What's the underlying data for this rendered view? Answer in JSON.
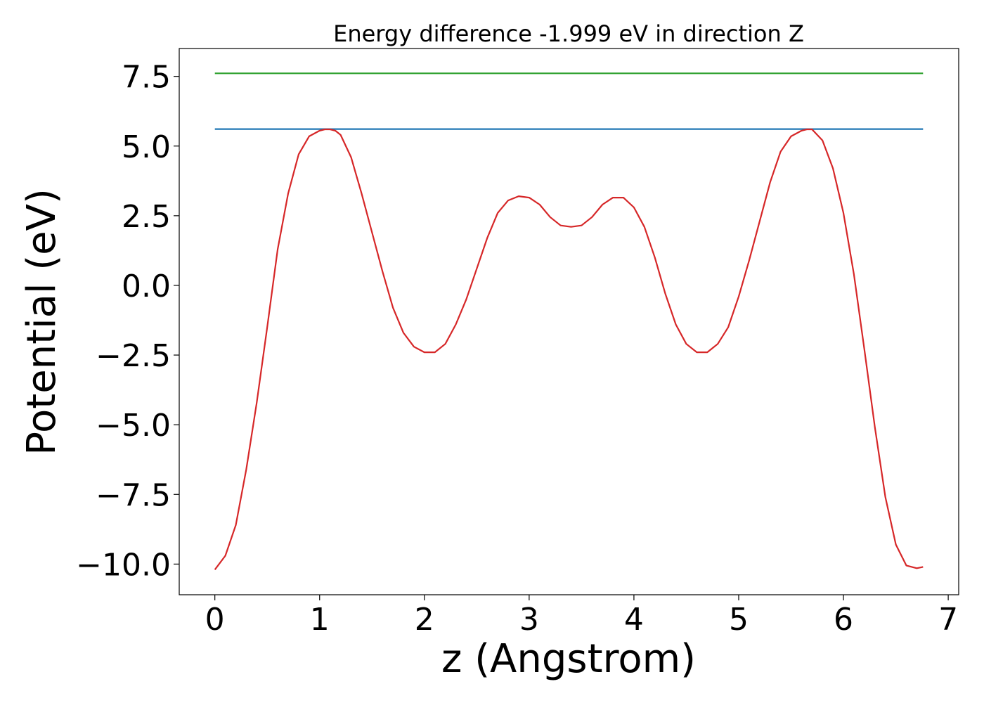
{
  "chart_data": {
    "type": "line",
    "title": "Energy difference -1.999 eV in direction Z",
    "xlabel": "z (Angstrom)",
    "ylabel": "Potential (eV)",
    "xlim": [
      -0.34,
      7.1
    ],
    "ylim": [
      -11.1,
      8.5
    ],
    "xticks": [
      0,
      1,
      2,
      3,
      4,
      5,
      6,
      7
    ],
    "xtick_labels": [
      "0",
      "1",
      "2",
      "3",
      "4",
      "5",
      "6",
      "7"
    ],
    "yticks": [
      7.5,
      5.0,
      2.5,
      0.0,
      -2.5,
      -5.0,
      -7.5,
      -10.0
    ],
    "ytick_labels": [
      "7.5",
      "5.0",
      "2.5",
      "0.0",
      "−2.5",
      "−5.0",
      "−7.5",
      "−10.0"
    ],
    "grid": false,
    "series": [
      {
        "color": "#2ca02c",
        "x": [
          0.0,
          6.76
        ],
        "y": [
          7.61,
          7.61
        ]
      },
      {
        "color": "#1f77b4",
        "x": [
          0.0,
          6.76
        ],
        "y": [
          5.61,
          5.61
        ]
      },
      {
        "color": "#d62728",
        "x": [
          0.0,
          0.1,
          0.2,
          0.3,
          0.4,
          0.5,
          0.6,
          0.7,
          0.8,
          0.9,
          1.0,
          1.05,
          1.1,
          1.15,
          1.2,
          1.3,
          1.4,
          1.5,
          1.6,
          1.7,
          1.8,
          1.9,
          2.0,
          2.1,
          2.2,
          2.3,
          2.4,
          2.5,
          2.6,
          2.7,
          2.8,
          2.9,
          3.0,
          3.1,
          3.2,
          3.3,
          3.4,
          3.5,
          3.6,
          3.7,
          3.8,
          3.9,
          4.0,
          4.1,
          4.2,
          4.3,
          4.4,
          4.5,
          4.6,
          4.7,
          4.8,
          4.9,
          5.0,
          5.1,
          5.2,
          5.3,
          5.4,
          5.5,
          5.6,
          5.65,
          5.7,
          5.8,
          5.9,
          6.0,
          6.1,
          6.2,
          6.3,
          6.4,
          6.5,
          6.6,
          6.7,
          6.76
        ],
        "y": [
          -10.2,
          -9.7,
          -8.6,
          -6.6,
          -4.2,
          -1.5,
          1.3,
          3.3,
          4.7,
          5.35,
          5.55,
          5.6,
          5.6,
          5.55,
          5.4,
          4.6,
          3.3,
          1.9,
          0.5,
          -0.8,
          -1.7,
          -2.2,
          -2.4,
          -2.4,
          -2.1,
          -1.4,
          -0.5,
          0.6,
          1.7,
          2.6,
          3.05,
          3.2,
          3.15,
          2.9,
          2.45,
          2.15,
          2.1,
          2.15,
          2.45,
          2.9,
          3.15,
          3.15,
          2.8,
          2.1,
          1.0,
          -0.3,
          -1.4,
          -2.1,
          -2.4,
          -2.4,
          -2.1,
          -1.5,
          -0.4,
          0.9,
          2.3,
          3.7,
          4.8,
          5.35,
          5.55,
          5.6,
          5.6,
          5.2,
          4.2,
          2.6,
          0.4,
          -2.3,
          -5.1,
          -7.6,
          -9.3,
          -10.05,
          -10.15,
          -10.1
        ]
      }
    ]
  }
}
